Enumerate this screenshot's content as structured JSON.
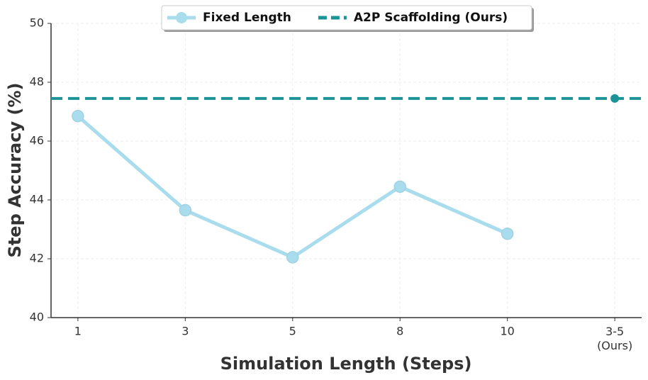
{
  "chart_data": {
    "type": "line",
    "xlabel": "Simulation Length (Steps)",
    "ylabel": "Step Accuracy (%)",
    "categories": [
      "1",
      "3",
      "5",
      "8",
      "10",
      "3-5\n(Ours)"
    ],
    "series": [
      {
        "name": "Fixed Length",
        "color": "#a9dcec",
        "style": "solid",
        "values": [
          46.85,
          43.65,
          42.05,
          44.45,
          42.85,
          null
        ]
      },
      {
        "name": "A2P Scaffolding (Ours)",
        "color": "#1a9396",
        "style": "dashed",
        "values": [
          null,
          null,
          null,
          null,
          null,
          47.45
        ]
      }
    ],
    "ylim": [
      40,
      50
    ],
    "yticks": [
      40,
      42,
      44,
      46,
      48,
      50
    ],
    "grid": true,
    "legend": "top"
  }
}
